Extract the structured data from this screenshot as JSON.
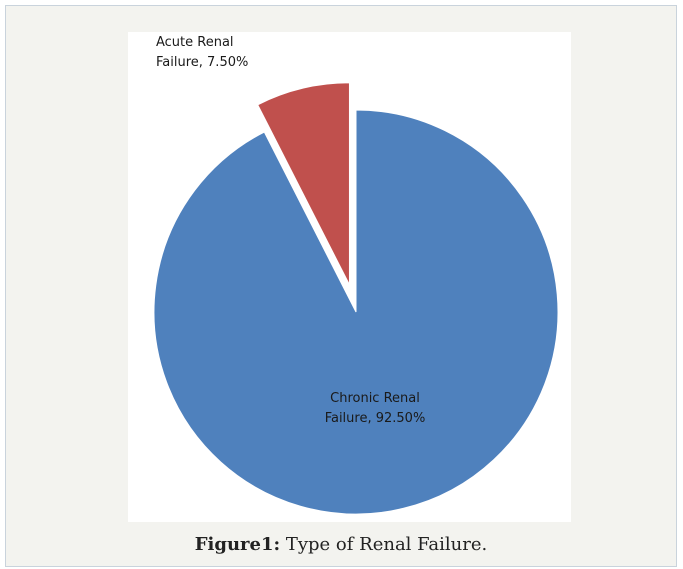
{
  "caption": {
    "label": "Figure1:",
    "text": " Type of Renal Failure."
  },
  "chart_data": {
    "type": "pie",
    "title": "",
    "slices": [
      {
        "label_lines": [
          "Acute Renal",
          "Failure, 7.50%"
        ],
        "value": 7.5,
        "color": "#c0504d",
        "exploded": true
      },
      {
        "label_lines": [
          "Chronic Renal",
          "Failure, 92.50%"
        ],
        "value": 92.5,
        "color": "#4f81bd",
        "exploded": false
      }
    ],
    "start_angle_deg": -27,
    "legend": "none"
  }
}
